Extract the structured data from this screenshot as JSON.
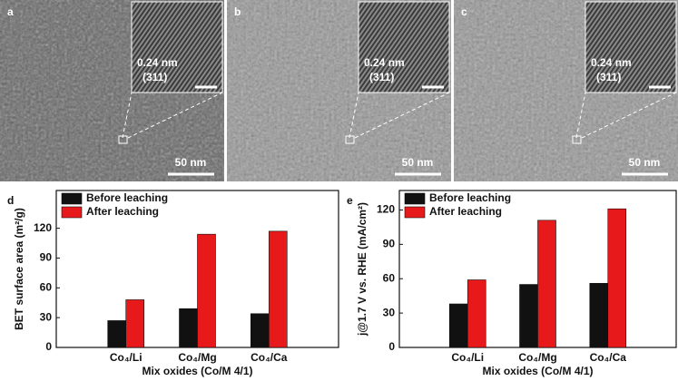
{
  "panels": [
    {
      "label": "a",
      "inset_labels": [
        "0.24 nm",
        "(311)"
      ],
      "scale": "50 nm"
    },
    {
      "label": "b",
      "inset_labels": [
        "0.24 nm",
        "(311)"
      ],
      "scale": "50 nm"
    },
    {
      "label": "c",
      "inset_labels": [
        "0.24 nm",
        "(311)"
      ],
      "scale": "50 nm"
    }
  ],
  "chart_data": [
    {
      "type": "bar",
      "title": "d",
      "ylabel": "BET surface area (m²/g)",
      "xlabel": "Mix oxides (Co/M 4/1)",
      "categories": [
        "Co₄/Li",
        "Co₄/Mg",
        "Co₄/Ca"
      ],
      "series": [
        {
          "name": "Before leaching",
          "color": "#111111",
          "values": [
            27,
            39,
            34
          ]
        },
        {
          "name": "After leaching",
          "color": "#e8191a",
          "values": [
            48,
            114,
            117
          ]
        }
      ],
      "ylim": [
        0,
        158
      ],
      "yticks": [
        0,
        30,
        60,
        90,
        120
      ],
      "legend": "upper-left"
    },
    {
      "type": "bar",
      "title": "e",
      "ylabel": "j@1.7 V vs. RHE (mA/cm²)",
      "xlabel": "Mix oxides (Co/M 4/1)",
      "categories": [
        "Co₄/Li",
        "Co₄/Mg",
        "Co₄/Ca"
      ],
      "series": [
        {
          "name": "Before leaching",
          "color": "#111111",
          "values": [
            38,
            55,
            56
          ]
        },
        {
          "name": "After leaching",
          "color": "#e8191a",
          "values": [
            59,
            111,
            121
          ]
        }
      ],
      "ylim": [
        0,
        137
      ],
      "yticks": [
        0,
        30,
        60,
        90,
        120
      ],
      "legend": "upper-left"
    }
  ]
}
